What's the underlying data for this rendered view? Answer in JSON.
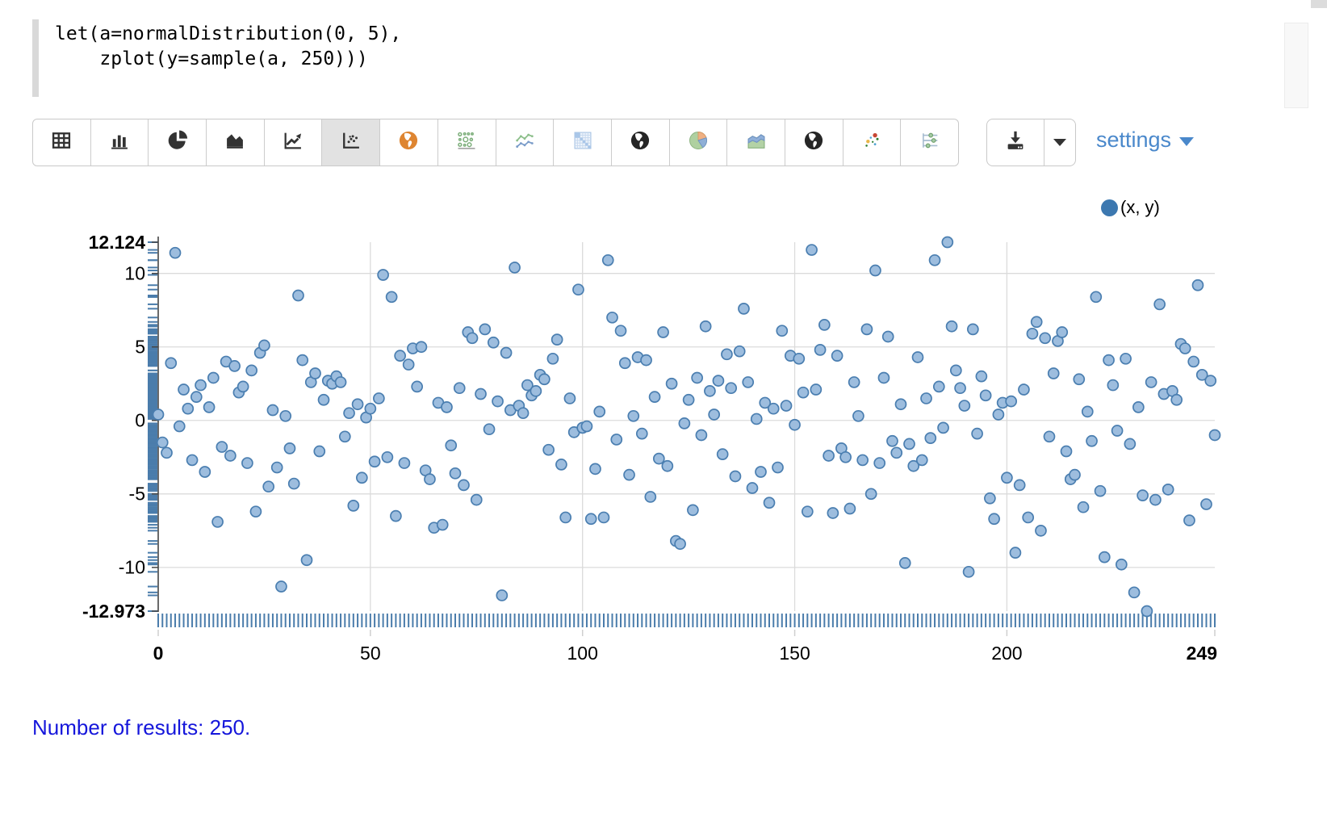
{
  "editor": {
    "line1": "let(a=normalDistribution(0, 5),",
    "line2": "    zplot(y=sample(a, 250)))"
  },
  "toolbar": {
    "chart_type_buttons": [
      {
        "icon": "table-icon",
        "selected": false
      },
      {
        "icon": "bar-chart-icon",
        "selected": false
      },
      {
        "icon": "pie-chart-icon",
        "selected": false
      },
      {
        "icon": "area-chart-icon",
        "selected": false
      },
      {
        "icon": "line-chart-icon",
        "selected": false
      },
      {
        "icon": "scatter-chart-icon",
        "selected": true
      },
      {
        "icon": "world-map-orange-icon",
        "selected": false
      },
      {
        "icon": "bubble-chart-icon",
        "selected": false
      },
      {
        "icon": "multi-series-line-icon",
        "selected": false
      },
      {
        "icon": "table-heatmap-icon",
        "selected": false
      },
      {
        "icon": "globe-icon",
        "selected": false
      },
      {
        "icon": "pie-chart-colored-icon",
        "selected": false
      },
      {
        "icon": "area-chart-colored-icon",
        "selected": false
      },
      {
        "icon": "globe-icon",
        "selected": false
      },
      {
        "icon": "motion-chart-icon",
        "selected": false
      },
      {
        "icon": "filter-sliders-icon",
        "selected": false
      }
    ],
    "download_icon": "download-icon",
    "settings_label": "settings"
  },
  "legend": {
    "marker_color": "#3c78b0",
    "label": "(x, y)"
  },
  "chart_data": {
    "type": "scatter",
    "title": "",
    "xlabel": "",
    "ylabel": "",
    "x_is_index": true,
    "xlim": [
      0,
      249
    ],
    "ylim": [
      -12.973,
      12.124
    ],
    "grid": true,
    "legend_position": "top-right",
    "x_ticks": [
      {
        "value": 0,
        "label": "0",
        "bold": true
      },
      {
        "value": 50,
        "label": "50",
        "bold": false
      },
      {
        "value": 100,
        "label": "100",
        "bold": false
      },
      {
        "value": 150,
        "label": "150",
        "bold": false
      },
      {
        "value": 200,
        "label": "200",
        "bold": false
      },
      {
        "value": 249,
        "label": "249",
        "bold": true
      }
    ],
    "y_ticks": [
      {
        "value": 12.124,
        "label": "12.124",
        "bold": true
      },
      {
        "value": 10,
        "label": "10",
        "bold": false
      },
      {
        "value": 5,
        "label": "5",
        "bold": false
      },
      {
        "value": 0,
        "label": "0",
        "bold": false
      },
      {
        "value": -5,
        "label": "-5",
        "bold": false
      },
      {
        "value": -10,
        "label": "-10",
        "bold": false
      },
      {
        "value": -12.973,
        "label": "-12.973",
        "bold": true
      }
    ],
    "rug": {
      "x": true,
      "y": true,
      "color": "#4a7cab"
    },
    "marker": {
      "fill": "#9dbdde",
      "stroke": "#4a7eb0",
      "radius": 6.5
    },
    "series": [
      {
        "name": "(x, y)",
        "y_values": [
          0.4,
          -1.5,
          -2.2,
          3.9,
          11.4,
          -0.4,
          2.1,
          0.8,
          -2.7,
          1.6,
          2.4,
          -3.5,
          0.9,
          2.9,
          -6.9,
          -1.8,
          4.0,
          -2.4,
          3.7,
          1.9,
          2.3,
          -2.9,
          3.4,
          -6.2,
          4.6,
          5.1,
          -4.5,
          0.7,
          -3.2,
          -11.3,
          0.3,
          -1.9,
          -4.3,
          8.5,
          4.1,
          -9.5,
          2.6,
          3.2,
          -2.1,
          1.4,
          2.7,
          2.5,
          3.0,
          2.6,
          -1.1,
          0.5,
          -5.8,
          1.1,
          -3.9,
          0.2,
          0.8,
          -2.8,
          1.5,
          9.9,
          -2.5,
          8.4,
          -6.5,
          4.4,
          -2.9,
          3.8,
          4.9,
          2.3,
          5.0,
          -3.4,
          -4.0,
          -7.3,
          1.2,
          -7.1,
          0.9,
          -1.7,
          -3.6,
          2.2,
          -4.4,
          6.0,
          5.6,
          -5.4,
          1.8,
          6.2,
          -0.6,
          5.3,
          1.3,
          -11.9,
          4.6,
          0.7,
          10.4,
          1.0,
          0.5,
          2.4,
          1.7,
          2.0,
          3.1,
          2.8,
          -2.0,
          4.2,
          5.5,
          -3.0,
          -6.6,
          1.5,
          -0.8,
          8.9,
          -0.5,
          -0.4,
          -6.7,
          -3.3,
          0.6,
          -6.6,
          10.9,
          7.0,
          -1.3,
          6.1,
          3.9,
          -3.7,
          0.3,
          4.3,
          -0.9,
          4.1,
          -5.2,
          1.6,
          -2.6,
          6.0,
          -3.1,
          2.5,
          -8.2,
          -8.4,
          -0.2,
          1.4,
          -6.1,
          2.9,
          -1.0,
          6.4,
          2.0,
          0.4,
          2.7,
          -2.3,
          4.5,
          2.2,
          -3.8,
          4.7,
          7.6,
          2.6,
          -4.6,
          0.1,
          -3.5,
          1.2,
          -5.6,
          0.8,
          -3.2,
          6.1,
          1.0,
          4.4,
          -0.3,
          4.2,
          1.9,
          -6.2,
          11.6,
          2.1,
          4.8,
          6.5,
          -2.4,
          -6.3,
          4.4,
          -1.9,
          -2.5,
          -6.0,
          2.6,
          0.3,
          -2.7,
          6.2,
          -5.0,
          10.2,
          -2.9,
          2.9,
          5.7,
          -1.4,
          -2.2,
          1.1,
          -9.7,
          -1.6,
          -3.1,
          4.3,
          -2.7,
          1.5,
          -1.2,
          10.9,
          2.3,
          -0.5,
          12.124,
          6.4,
          3.4,
          2.2,
          1.0,
          -10.3,
          6.2,
          -0.9,
          3.0,
          1.7,
          -5.3,
          -6.7,
          0.4,
          1.2,
          -3.9,
          1.3,
          -9.0,
          -4.4,
          2.1,
          -6.6,
          5.9,
          6.7,
          -7.5,
          5.6,
          -1.1,
          3.2,
          5.4,
          6.0,
          -2.1,
          -4.0,
          -3.7,
          2.8,
          -5.9,
          0.6,
          -1.4,
          8.4,
          -4.8,
          -9.3,
          4.1,
          2.4,
          -0.7,
          -9.8,
          4.2,
          -1.6,
          -11.7,
          0.9,
          -5.1,
          -12.973,
          2.6,
          -5.4,
          7.9,
          1.8,
          -4.7,
          2.0,
          1.4,
          5.2,
          4.9,
          -6.8,
          4.0,
          9.2,
          3.1,
          -5.7,
          2.7,
          -1.0
        ]
      }
    ]
  },
  "footer": {
    "text": "Number of results: 250."
  }
}
